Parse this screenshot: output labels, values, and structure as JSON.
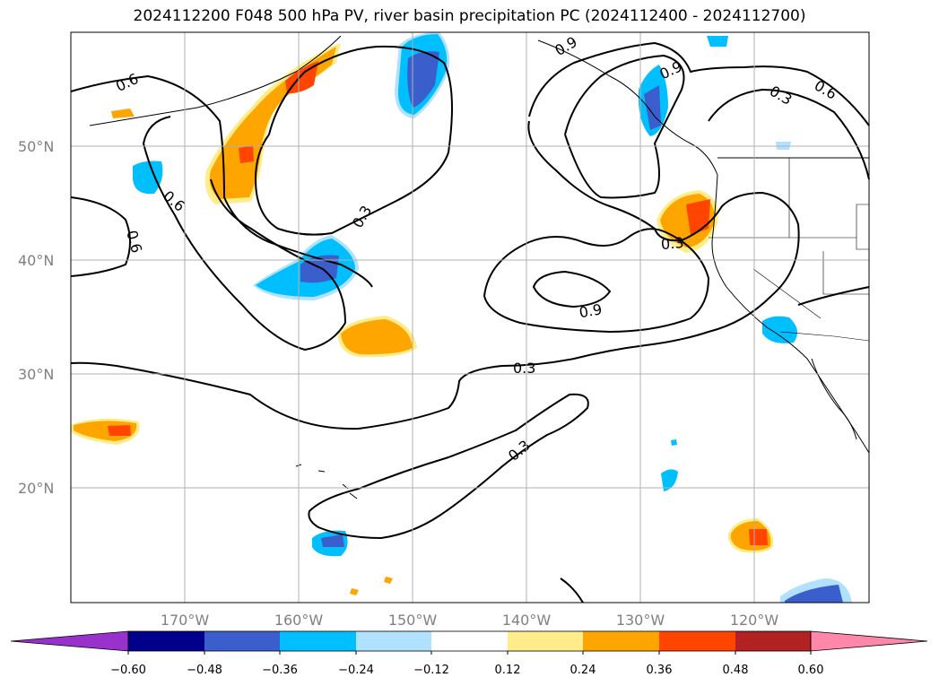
{
  "title": "2024112200 F048 500 hPa PV, river basin precipitation PC (2024112400 - 2024112700)",
  "map": {
    "lat_ticks": [
      "50°N",
      "40°N",
      "30°N",
      "20°N"
    ],
    "lon_ticks": [
      "170°W",
      "160°W",
      "150°W",
      "140°W",
      "130°W",
      "120°W"
    ],
    "contour_labels": [
      "0.6",
      "0.6",
      "0.6",
      "0.3",
      "0.9",
      "0.3",
      "0.6",
      "0.3",
      "0.9",
      "0.3",
      "0.3",
      "0.9"
    ],
    "extent": {
      "lon": [
        -180,
        -110
      ],
      "lat": [
        10,
        60
      ]
    }
  },
  "colorbar": {
    "ticks": [
      "−0.60",
      "−0.48",
      "−0.36",
      "−0.24",
      "−0.12",
      "0.12",
      "0.24",
      "0.36",
      "0.48",
      "0.60"
    ],
    "colors": [
      "#9932cc",
      "#00008b",
      "#3a5fcd",
      "#00bfff",
      "#b0e2ff",
      "#ffffff",
      "#ffec8b",
      "#ffa500",
      "#ff4500",
      "#b22222",
      "#ff88aa"
    ]
  }
}
